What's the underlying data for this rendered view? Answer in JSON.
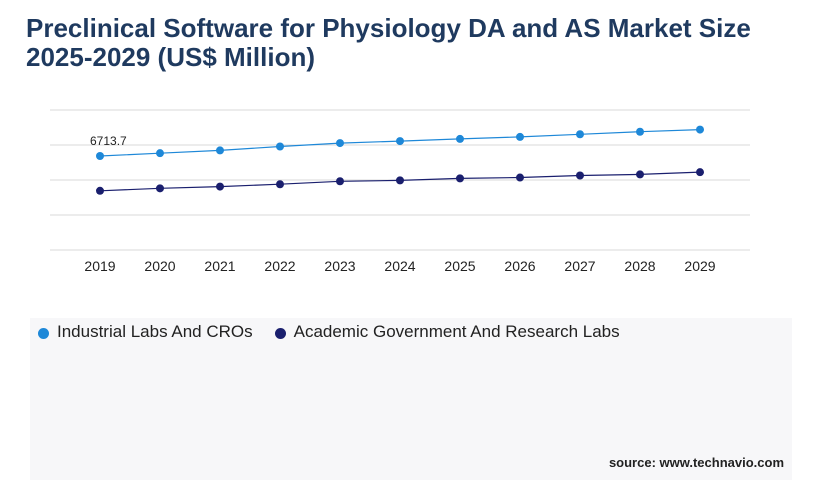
{
  "title": "Preclinical Software for Physiology DA and AS Market Size 2025-2029 (US$ Million)",
  "source": "source: www.technavio.com",
  "chart_data": {
    "type": "line",
    "title": "Preclinical Software for Physiology DA and AS Market Size 2025-2029 (US$ Million)",
    "categories": [
      "2019",
      "2020",
      "2021",
      "2022",
      "2023",
      "2024",
      "2025",
      "2026",
      "2027",
      "2028",
      "2029"
    ],
    "series": [
      {
        "name": "Industrial Labs And CROs",
        "color": "#1e88d8",
        "values": [
          6713.7,
          6916,
          7114,
          7393,
          7636,
          7781,
          7935,
          8077,
          8267,
          8447,
          8602
        ]
      },
      {
        "name": "Academic Government And Research Labs",
        "color": "#1a1f6e",
        "values": [
          4229,
          4406,
          4530,
          4697,
          4910,
          4973,
          5117,
          5176,
          5322,
          5399,
          5561
        ]
      }
    ],
    "data_labels": [
      {
        "series": 0,
        "index": 0,
        "text": "6713.7"
      }
    ],
    "ylim": [
      0,
      10000
    ],
    "grid": true,
    "legend": "bottom-left"
  }
}
